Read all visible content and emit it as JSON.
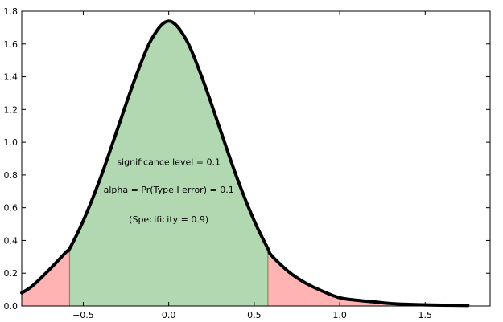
{
  "chart_data": {
    "type": "area",
    "title": "",
    "xlabel": "",
    "ylabel": "",
    "xlim": [
      -0.86,
      1.88
    ],
    "ylim": [
      0.0,
      1.8
    ],
    "grid": false,
    "legend": "none",
    "x_ticks": [
      -0.5,
      0.0,
      0.5,
      1.0,
      1.5
    ],
    "x_tick_labels": [
      "−0.5",
      "0.0",
      "0.5",
      "1.0",
      "1.5"
    ],
    "y_ticks": [
      0.0,
      0.2,
      0.4,
      0.6,
      0.8,
      1.0,
      1.2,
      1.4,
      1.6,
      1.8
    ],
    "y_tick_labels": [
      "0.0",
      "0.2",
      "0.4",
      "0.6",
      "0.8",
      "1.0",
      "1.2",
      "1.4",
      "1.6",
      "1.8"
    ],
    "curve": {
      "x": [
        -0.86,
        -0.8,
        -0.7,
        -0.6,
        -0.58,
        -0.5,
        -0.4,
        -0.3,
        -0.2,
        -0.1,
        0.0,
        0.1,
        0.2,
        0.3,
        0.4,
        0.5,
        0.58,
        0.6,
        0.7,
        0.8,
        0.9,
        1.0,
        1.1,
        1.2,
        1.3,
        1.4,
        1.5,
        1.6,
        1.75
      ],
      "y": [
        0.08,
        0.12,
        0.22,
        0.33,
        0.35,
        0.52,
        0.78,
        1.08,
        1.38,
        1.63,
        1.74,
        1.63,
        1.38,
        1.08,
        0.78,
        0.52,
        0.35,
        0.31,
        0.21,
        0.14,
        0.09,
        0.05,
        0.035,
        0.025,
        0.015,
        0.01,
        0.007,
        0.005,
        0.003
      ]
    },
    "regions": [
      {
        "from": -0.86,
        "to": -0.58,
        "color": "#ffb3b3"
      },
      {
        "from": -0.58,
        "to": 0.58,
        "color": "#b2d8b2"
      },
      {
        "from": 0.58,
        "to": 1.75,
        "color": "#ffb3b3"
      }
    ],
    "boundaries": [
      -0.58,
      0.58
    ],
    "annotations": [
      {
        "text": "significance level = 0.1",
        "x": 0.0,
        "y": 0.88
      },
      {
        "text": "alpha = Pr(Type I error) = 0.1",
        "x": 0.0,
        "y": 0.71
      },
      {
        "text": "(Specificity = 0.9)",
        "x": 0.0,
        "y": 0.53
      }
    ],
    "colors": {
      "curve": "#000000",
      "accept_region": "#b2d8b2",
      "reject_region": "#ffb3b3",
      "boundary_line": "#8b8b5a"
    }
  }
}
